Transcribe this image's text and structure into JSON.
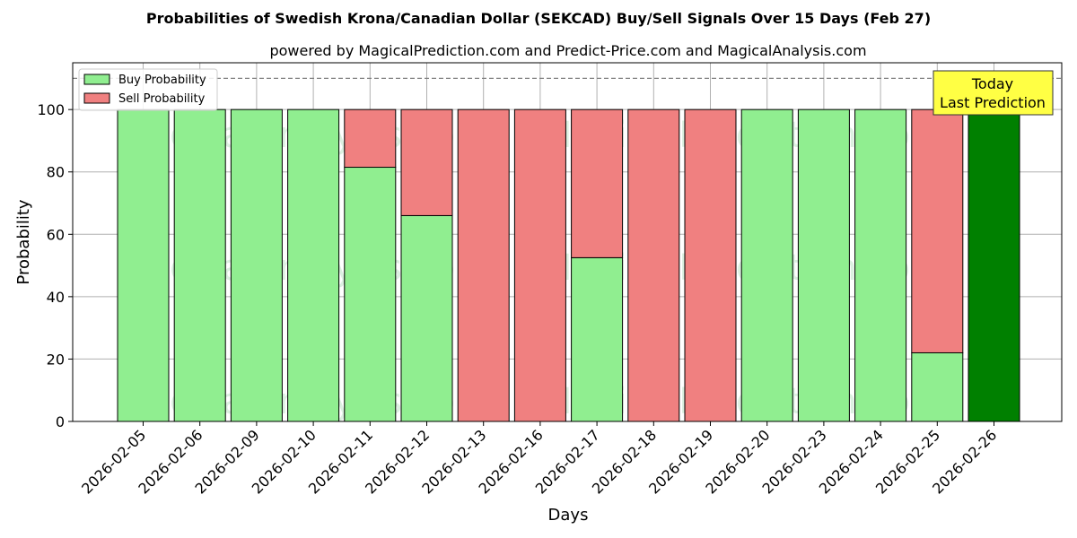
{
  "chart_data": {
    "type": "bar",
    "title": "Probabilities of Swedish Krona/Canadian Dollar (SEKCAD) Buy/Sell Signals Over 15 Days (Feb 27)",
    "subtitle": "powered by MagicalPrediction.com and Predict-Price.com and MagicalAnalysis.com",
    "xlabel": "Days",
    "ylabel": "Probability",
    "ylim": [
      0,
      115
    ],
    "yticks": [
      0,
      20,
      40,
      60,
      80,
      100
    ],
    "categories": [
      "2026-02-05",
      "2026-02-06",
      "2026-02-09",
      "2026-02-10",
      "2026-02-11",
      "2026-02-12",
      "2026-02-13",
      "2026-02-16",
      "2026-02-17",
      "2026-02-18",
      "2026-02-19",
      "2026-02-20",
      "2026-02-23",
      "2026-02-24",
      "2026-02-25",
      "2026-02-26"
    ],
    "series": [
      {
        "name": "Buy Probability",
        "color": "#90ee90",
        "values": [
          100,
          100,
          100,
          100,
          81.5,
          66,
          0,
          0,
          52.5,
          0,
          0,
          100,
          100,
          100,
          22,
          100
        ]
      },
      {
        "name": "Sell Probability",
        "color": "#f08080",
        "values": [
          0,
          0,
          0,
          0,
          18.5,
          34,
          100,
          100,
          47.5,
          100,
          100,
          0,
          0,
          0,
          78,
          0
        ]
      }
    ],
    "highlight": {
      "category": "2026-02-26",
      "color": "#008000"
    },
    "reference_line": {
      "y": 110,
      "style": "dashed",
      "color": "#808080"
    },
    "grid": true,
    "legend_position": "top-left",
    "annotation": {
      "lines": [
        "Today",
        "Last Prediction"
      ],
      "background": "#ffff44"
    },
    "watermarks": [
      "MagicalAnalysis.com",
      "MagicalPrediction.com"
    ]
  }
}
